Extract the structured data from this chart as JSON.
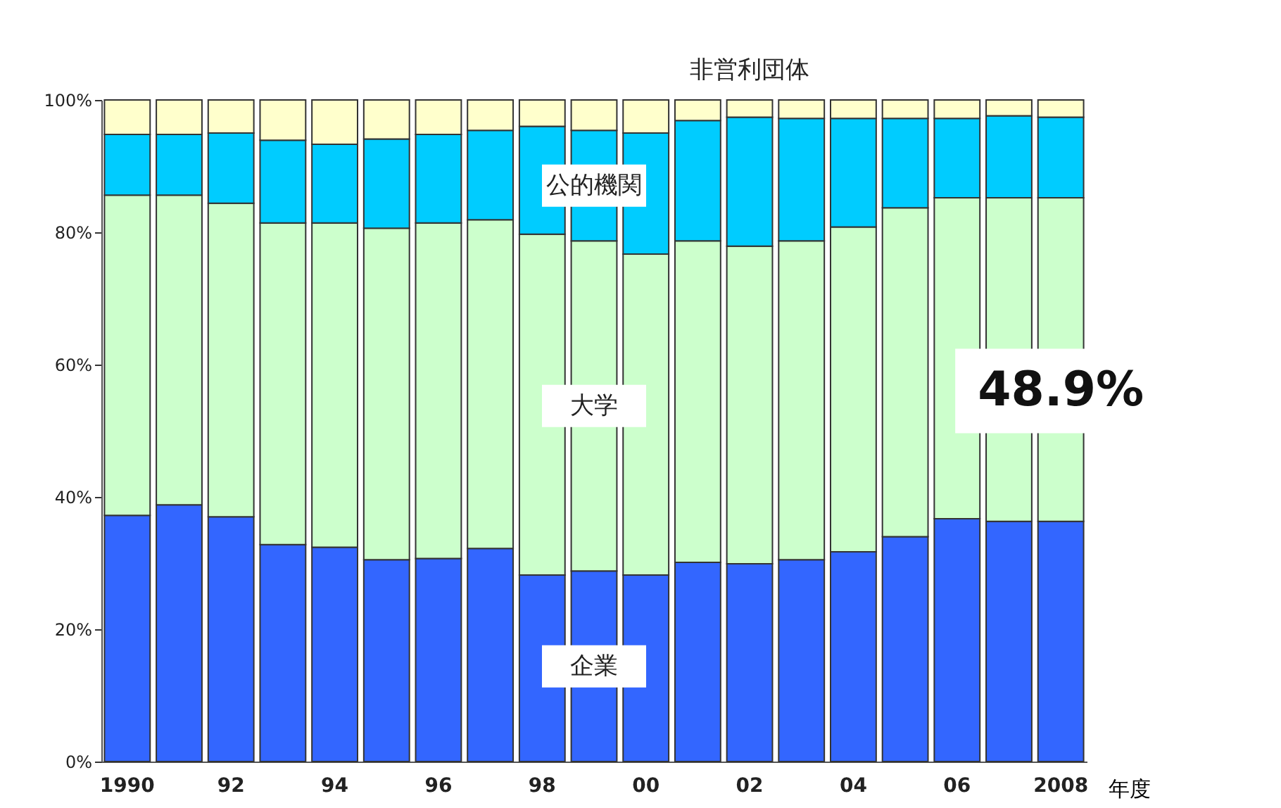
{
  "chart_data": {
    "type": "bar",
    "stacked": true,
    "xlabel": "年度",
    "categories": [
      "1990",
      null,
      "92",
      null,
      "94",
      null,
      "96",
      null,
      "98",
      null,
      "00",
      null,
      "02",
      null,
      "04",
      null,
      "06",
      null,
      "2008"
    ],
    "series": [
      {
        "name": "企業",
        "color": "#3366ff",
        "values": [
          37.2,
          38.8,
          37.0,
          32.8,
          32.4,
          30.5,
          30.7,
          32.2,
          28.2,
          28.8,
          28.2,
          30.1,
          29.9,
          30.5,
          31.7,
          34.0,
          36.7,
          36.3,
          36.3
        ]
      },
      {
        "name": "大学",
        "color": "#ccffcc",
        "values": [
          48.4,
          46.8,
          47.4,
          48.6,
          49.0,
          50.1,
          50.7,
          49.7,
          51.5,
          49.9,
          48.5,
          48.6,
          48.0,
          48.2,
          49.1,
          49.7,
          48.5,
          48.9,
          48.9
        ]
      },
      {
        "name": "公的機関",
        "color": "#00ccff",
        "values": [
          9.2,
          9.2,
          10.6,
          12.5,
          11.9,
          13.5,
          13.4,
          13.5,
          16.3,
          16.7,
          18.3,
          18.2,
          19.5,
          18.5,
          16.4,
          13.5,
          12.0,
          12.4,
          12.2
        ]
      },
      {
        "name": "非営利団体",
        "color": "#ffffcc",
        "values": [
          5.2,
          5.2,
          5.0,
          6.1,
          6.7,
          5.9,
          5.2,
          4.6,
          4.0,
          4.6,
          5.0,
          3.1,
          2.6,
          2.8,
          2.8,
          2.8,
          2.8,
          2.4,
          2.6
        ]
      }
    ],
    "ylim": [
      0,
      100
    ],
    "yticks": [
      {
        "value": 0,
        "label": "0%"
      },
      {
        "value": 20,
        "label": "20%"
      },
      {
        "value": 40,
        "label": "40%"
      },
      {
        "value": 60,
        "label": "60%"
      },
      {
        "value": 80,
        "label": "80%"
      },
      {
        "value": 100,
        "label": "100%"
      }
    ],
    "grid": false,
    "legend": false,
    "annotations": [
      "48.9%"
    ]
  }
}
